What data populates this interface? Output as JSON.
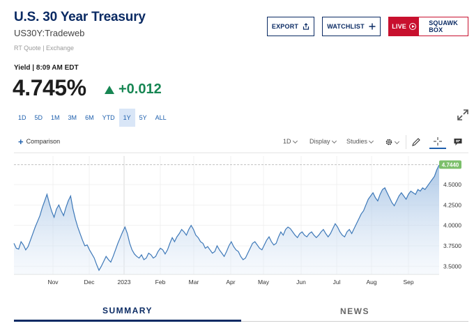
{
  "header": {
    "title": "U.S. 30 Year Treasury",
    "symbol": "US30Y:Tradeweb",
    "rt_quote": "RT Quote | Exchange",
    "yield_line": "Yield | 8:09 AM EDT",
    "last": "4.745%",
    "change": "+0.012"
  },
  "buttons": {
    "export": "EXPORT",
    "watchlist": "WATCHLIST",
    "live": "LIVE",
    "squawk": "SQUAWK BOX"
  },
  "ranges": [
    "1D",
    "5D",
    "1M",
    "3M",
    "6M",
    "YTD",
    "1Y",
    "5Y",
    "ALL"
  ],
  "active_range": "1Y",
  "toolbar": {
    "comparison": "Comparison",
    "interval": "1D",
    "display": "Display",
    "studies": "Studies"
  },
  "tabs": {
    "summary": "SUMMARY",
    "news": "NEWS"
  },
  "colors": {
    "brand": "#0a2a63",
    "positive": "#178653",
    "live": "#c8102e",
    "line": "#3d78b8",
    "last_label": "#7bbf6a"
  },
  "chart_data": {
    "type": "area",
    "x_labels": [
      "Nov",
      "Dec",
      "2023",
      "Feb",
      "Mar",
      "Apr",
      "May",
      "Jun",
      "Jul",
      "Aug",
      "Sep"
    ],
    "y_ticks": [
      "3.5000",
      "3.7500",
      "4.0000",
      "4.2500",
      "4.5000"
    ],
    "y_tick_values": [
      3.5,
      3.75,
      4.0,
      4.25,
      4.5
    ],
    "ylim": [
      3.4,
      4.85
    ],
    "last_value_label": "4.7440",
    "last_value": 4.744,
    "values": [
      3.78,
      3.72,
      3.71,
      3.8,
      3.76,
      3.7,
      3.74,
      3.82,
      3.9,
      3.98,
      4.05,
      4.12,
      4.22,
      4.3,
      4.38,
      4.27,
      4.17,
      4.1,
      4.2,
      4.25,
      4.18,
      4.12,
      4.22,
      4.3,
      4.36,
      4.2,
      4.08,
      3.98,
      3.9,
      3.82,
      3.75,
      3.76,
      3.7,
      3.65,
      3.6,
      3.52,
      3.45,
      3.5,
      3.56,
      3.62,
      3.58,
      3.55,
      3.62,
      3.7,
      3.78,
      3.85,
      3.92,
      3.98,
      3.9,
      3.78,
      3.7,
      3.65,
      3.62,
      3.6,
      3.64,
      3.58,
      3.6,
      3.66,
      3.64,
      3.6,
      3.62,
      3.68,
      3.72,
      3.7,
      3.65,
      3.7,
      3.78,
      3.85,
      3.8,
      3.86,
      3.9,
      3.95,
      3.92,
      3.88,
      3.95,
      4.0,
      3.95,
      3.88,
      3.85,
      3.8,
      3.78,
      3.72,
      3.74,
      3.7,
      3.66,
      3.68,
      3.75,
      3.7,
      3.66,
      3.62,
      3.68,
      3.75,
      3.8,
      3.74,
      3.7,
      3.68,
      3.62,
      3.58,
      3.6,
      3.66,
      3.72,
      3.78,
      3.8,
      3.76,
      3.72,
      3.7,
      3.76,
      3.82,
      3.86,
      3.8,
      3.76,
      3.78,
      3.86,
      3.92,
      3.88,
      3.95,
      3.98,
      3.96,
      3.92,
      3.88,
      3.85,
      3.9,
      3.92,
      3.88,
      3.86,
      3.9,
      3.92,
      3.88,
      3.85,
      3.88,
      3.92,
      3.95,
      3.9,
      3.86,
      3.9,
      3.96,
      4.02,
      3.98,
      3.92,
      3.88,
      3.86,
      3.92,
      3.95,
      3.9,
      3.96,
      4.02,
      4.08,
      4.14,
      4.18,
      4.25,
      4.32,
      4.36,
      4.4,
      4.34,
      4.3,
      4.38,
      4.44,
      4.46,
      4.4,
      4.34,
      4.28,
      4.24,
      4.3,
      4.36,
      4.4,
      4.36,
      4.32,
      4.38,
      4.42,
      4.4,
      4.38,
      4.44,
      4.42,
      4.46,
      4.44,
      4.48,
      4.52,
      4.56,
      4.6,
      4.68,
      4.74
    ]
  }
}
